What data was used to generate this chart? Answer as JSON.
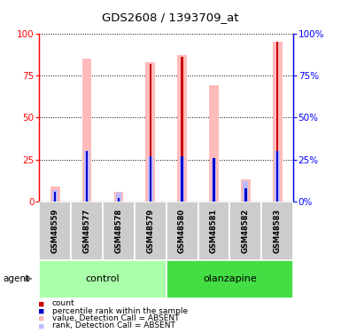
{
  "title": "GDS2608 / 1393709_at",
  "samples": [
    "GSM48559",
    "GSM48577",
    "GSM48578",
    "GSM48579",
    "GSM48580",
    "GSM48581",
    "GSM48582",
    "GSM48583"
  ],
  "red_bars": [
    1,
    1,
    1,
    82,
    86,
    1,
    1,
    95
  ],
  "pink_bars": [
    9,
    85,
    6,
    83,
    87,
    69,
    13,
    95
  ],
  "blue_bars": [
    6,
    30,
    2,
    27,
    27,
    26,
    8,
    30
  ],
  "lavender_bars": [
    7,
    30,
    5,
    27,
    27,
    26,
    12,
    30
  ],
  "ylim": [
    0,
    100
  ],
  "yticks": [
    0,
    25,
    50,
    75,
    100
  ],
  "agent_label": "agent",
  "groups_info": [
    {
      "name": "control",
      "start": 0,
      "end": 3,
      "color": "#aaffaa"
    },
    {
      "name": "olanzapine",
      "start": 4,
      "end": 7,
      "color": "#44dd44"
    }
  ],
  "legend_items": [
    {
      "label": "count",
      "color": "#cc0000"
    },
    {
      "label": "percentile rank within the sample",
      "color": "#0000cc"
    },
    {
      "label": "value, Detection Call = ABSENT",
      "color": "#ffbbbb"
    },
    {
      "label": "rank, Detection Call = ABSENT",
      "color": "#bbbbff"
    }
  ],
  "sample_bg": "#cccccc",
  "pink_color": "#ffbbbb",
  "lavender_color": "#bbbbff",
  "red_color": "#cc0000",
  "blue_color": "#0000cc",
  "pink_bar_width": 0.3,
  "lavender_bar_width": 0.16,
  "red_bar_width": 0.07,
  "blue_bar_width": 0.07
}
